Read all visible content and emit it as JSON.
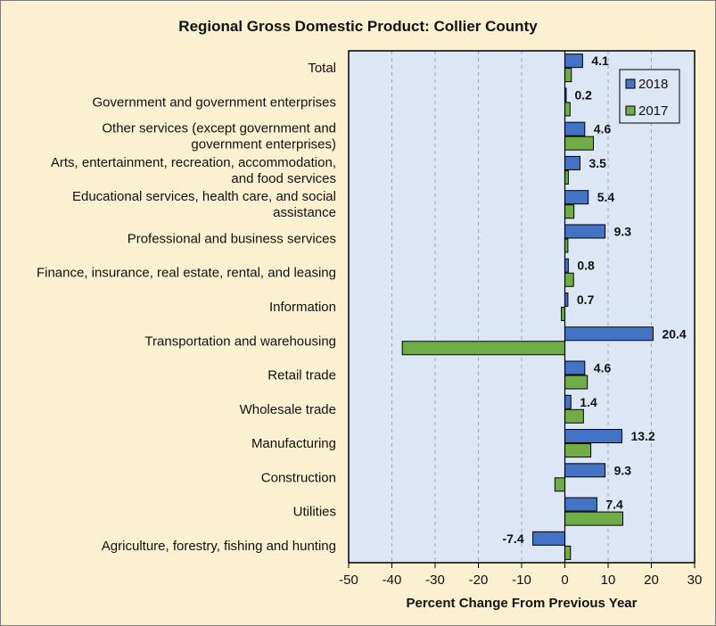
{
  "chart_data": {
    "type": "bar",
    "orientation": "horizontal",
    "title": "Regional Gross Domestic Product: Collier County",
    "xlabel": "Percent Change From Previous Year",
    "xlim": [
      -50,
      30
    ],
    "xticks": [
      "-50",
      "-40",
      "-30",
      "-20",
      "-10",
      "0",
      "10",
      "20",
      "30"
    ],
    "xtick_values": [
      -50,
      -40,
      -30,
      -20,
      -10,
      0,
      10,
      20,
      30
    ],
    "grid": "vertical dashed",
    "legend_position": "top-right",
    "categories": [
      [
        "Total"
      ],
      [
        "Government and government enterprises"
      ],
      [
        "Other services (except government and",
        "government enterprises)"
      ],
      [
        "Arts, entertainment, recreation, accommodation,",
        "and food services"
      ],
      [
        "Educational services, health care, and social",
        "assistance"
      ],
      [
        "Professional and business services"
      ],
      [
        "Finance, insurance, real estate, rental, and leasing"
      ],
      [
        "Information"
      ],
      [
        "Transportation and warehousing"
      ],
      [
        "Retail trade"
      ],
      [
        "Wholesale trade"
      ],
      [
        "Manufacturing"
      ],
      [
        "Construction"
      ],
      [
        "Utilities"
      ],
      [
        "Agriculture, forestry, fishing and hunting"
      ]
    ],
    "series": [
      {
        "name": "2018",
        "color": "#4472c4",
        "values": [
          4.1,
          0.2,
          4.6,
          3.5,
          5.4,
          9.3,
          0.8,
          0.7,
          20.4,
          4.6,
          1.4,
          13.2,
          9.3,
          7.4,
          -7.4
        ],
        "labels": [
          "4.1",
          "0.2",
          "4.6",
          "3.5",
          "5.4",
          "9.3",
          "0.8",
          "0.7",
          "20.4",
          "4.6",
          "1.4",
          "13.2",
          "9.3",
          "7.4",
          "-7.4"
        ]
      },
      {
        "name": "2017",
        "color": "#70ad47",
        "values": [
          1.5,
          1.2,
          6.6,
          0.8,
          2.1,
          0.7,
          2.0,
          -0.8,
          -37.6,
          5.2,
          4.3,
          6.0,
          -2.3,
          13.4,
          1.3
        ]
      }
    ]
  }
}
